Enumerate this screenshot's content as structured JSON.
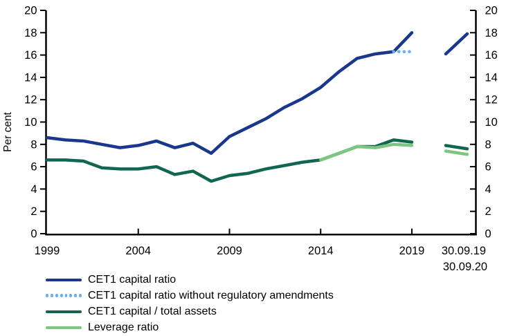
{
  "figure": {
    "y_axis_title": "Per cent"
  },
  "chart_data": {
    "type": "line",
    "title": "",
    "ylabel": "Per cent",
    "ylim": [
      0,
      20
    ],
    "y_ticks": [
      0,
      2,
      4,
      6,
      8,
      10,
      12,
      14,
      16,
      18,
      20
    ],
    "grid": "off",
    "legend_position": "bottom-left",
    "x_tick_years": [
      1999,
      2004,
      2009,
      2014,
      2019
    ],
    "x_tick_labels": [
      "1999",
      "2004",
      "2009",
      "2014",
      "2019"
    ],
    "extra_x_labels": [
      "30.09.19",
      "30.09.20"
    ],
    "series": [
      {
        "name": "CET1 capital ratio",
        "color": "#19378C",
        "style": "solid",
        "start_year": 1999,
        "x": [
          1999,
          2000,
          2001,
          2002,
          2003,
          2004,
          2005,
          2006,
          2007,
          2008,
          2009,
          2010,
          2011,
          2012,
          2013,
          2014,
          2015,
          2016,
          2017,
          2018,
          2019
        ],
        "values": [
          8.6,
          8.4,
          8.3,
          8.0,
          7.7,
          7.9,
          8.3,
          7.7,
          8.1,
          7.2,
          8.7,
          9.5,
          10.3,
          11.3,
          12.1,
          13.1,
          14.5,
          15.7,
          16.1,
          16.3,
          18.0
        ],
        "extra_points": {
          "30.09.19": 16.1,
          "30.09.20": 17.9
        }
      },
      {
        "name": "CET1 capital ratio without regulatory amendments",
        "color": "#64AFF5",
        "style": "dotted",
        "start_year": 2018,
        "x": [
          2018,
          2019
        ],
        "values": [
          16.3,
          16.3
        ],
        "extra_points": null
      },
      {
        "name": "CET1 capital / total assets",
        "color": "#106650",
        "style": "solid",
        "start_year": 1999,
        "x": [
          1999,
          2000,
          2001,
          2002,
          2003,
          2004,
          2005,
          2006,
          2007,
          2008,
          2009,
          2010,
          2011,
          2012,
          2013,
          2014,
          2015,
          2016,
          2017,
          2018,
          2019
        ],
        "values": [
          6.6,
          6.6,
          6.5,
          5.9,
          5.8,
          5.8,
          6.0,
          5.3,
          5.6,
          4.7,
          5.2,
          5.4,
          5.8,
          6.1,
          6.4,
          6.6,
          7.2,
          7.8,
          7.8,
          8.4,
          8.2
        ],
        "extra_points": {
          "30.09.19": 7.9,
          "30.09.20": 7.6
        }
      },
      {
        "name": "Leverage ratio",
        "color": "#7DC67F",
        "style": "solid",
        "start_year": 2014,
        "x": [
          2014,
          2015,
          2016,
          2017,
          2018,
          2019
        ],
        "values": [
          6.6,
          7.2,
          7.8,
          7.7,
          8.0,
          7.9
        ],
        "extra_points": {
          "30.09.19": 7.4,
          "30.09.20": 7.1
        }
      }
    ]
  }
}
